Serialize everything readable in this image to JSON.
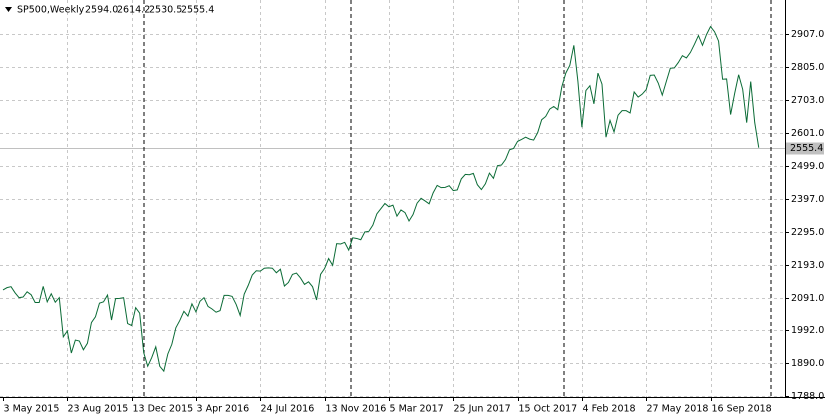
{
  "chart_data": {
    "type": "line",
    "title": "SP500,Weekly",
    "header_values": [
      "2594.0",
      "2614.2",
      "2530.5",
      "2555.4"
    ],
    "color": "#0b6b36",
    "grid": true,
    "categories": [
      "3 May 2015",
      null,
      null,
      null,
      null,
      null,
      null,
      null,
      null,
      null,
      null,
      null,
      null,
      null,
      null,
      null,
      "23 Aug 2015",
      null,
      null,
      null,
      null,
      null,
      null,
      null,
      null,
      null,
      null,
      null,
      null,
      null,
      null,
      null,
      "13 Dec 2015",
      null,
      null,
      null,
      null,
      null,
      null,
      null,
      null,
      null,
      null,
      null,
      null,
      null,
      null,
      null,
      "3 Apr 2016",
      null,
      null,
      null,
      null,
      null,
      null,
      null,
      null,
      null,
      null,
      null,
      null,
      null,
      null,
      null,
      "24 Jul 2016",
      null,
      null,
      null,
      null,
      null,
      null,
      null,
      null,
      null,
      null,
      null,
      null,
      null,
      null,
      null,
      "13 Nov 2016",
      null,
      null,
      null,
      null,
      null,
      null,
      null,
      null,
      null,
      null,
      null,
      null,
      null,
      null,
      null,
      "5 Mar 2017",
      null,
      null,
      null,
      null,
      null,
      null,
      null,
      null,
      null,
      null,
      null,
      null,
      null,
      null,
      null,
      "25 Jun 2017",
      null,
      null,
      null,
      null,
      null,
      null,
      null,
      null,
      null,
      null,
      null,
      null,
      null,
      null,
      null,
      "15 Oct 2017",
      null,
      null,
      null,
      null,
      null,
      null,
      null,
      null,
      null,
      null,
      null,
      null,
      null,
      null,
      null,
      "4 Feb 2018",
      null,
      null,
      null,
      null,
      null,
      null,
      null,
      null,
      null,
      null,
      null,
      null,
      null,
      null,
      null,
      "27 May 2018",
      null,
      null,
      null,
      null,
      null,
      null,
      null,
      null,
      null,
      null,
      null,
      null,
      null,
      null,
      null,
      "16 Sep 2018",
      null,
      null,
      null,
      null,
      null,
      null,
      null,
      null,
      null,
      null,
      null,
      null
    ],
    "values": [
      2116,
      2123,
      2126,
      2107,
      2092,
      2094,
      2110,
      2101,
      2077,
      2077,
      2127,
      2079,
      2104,
      2078,
      2092,
      1971,
      1989,
      1921,
      1961,
      1958,
      1931,
      1951,
      2015,
      2033,
      2075,
      2079,
      2100,
      2023,
      2089,
      2090,
      2092,
      2012,
      2006,
      2061,
      2044,
      1922,
      1880,
      1907,
      1940,
      1880,
      1865,
      1918,
      1948,
      1999,
      2022,
      2050,
      2035,
      2073,
      2048,
      2081,
      2092,
      2065,
      2057,
      2047,
      2052,
      2099,
      2099,
      2096,
      2071,
      2037,
      2103,
      2130,
      2162,
      2175,
      2174,
      2183,
      2184,
      2183,
      2169,
      2180,
      2128,
      2139,
      2164,
      2168,
      2153,
      2133,
      2141,
      2126,
      2085,
      2164,
      2182,
      2213,
      2192,
      2259,
      2258,
      2263,
      2239,
      2277,
      2275,
      2271,
      2295,
      2297,
      2316,
      2351,
      2367,
      2383,
      2373,
      2378,
      2344,
      2363,
      2355,
      2329,
      2349,
      2384,
      2399,
      2391,
      2382,
      2416,
      2439,
      2432,
      2433,
      2438,
      2423,
      2425,
      2459,
      2473,
      2472,
      2476,
      2441,
      2426,
      2444,
      2477,
      2461,
      2500,
      2502,
      2519,
      2549,
      2553,
      2575,
      2581,
      2588,
      2582,
      2579,
      2602,
      2642,
      2652,
      2675,
      2683,
      2673,
      2743,
      2786,
      2810,
      2872,
      2762,
      2619,
      2732,
      2747,
      2691,
      2786,
      2752,
      2588,
      2640,
      2604,
      2656,
      2670,
      2670,
      2663,
      2728,
      2712,
      2721,
      2735,
      2779,
      2780,
      2755,
      2718,
      2760,
      2801,
      2802,
      2819,
      2840,
      2833,
      2850,
      2875,
      2902,
      2872,
      2905,
      2930,
      2914,
      2885,
      2767,
      2768,
      2658,
      2723,
      2781,
      2736,
      2633,
      2760,
      2633,
      2555.4
    ],
    "ylim": [
      1785,
      3012
    ],
    "yticks": [
      {
        "value": 1788,
        "label": "1788.0"
      },
      {
        "value": 1890,
        "label": "1890.0"
      },
      {
        "value": 1992,
        "label": "1992.0"
      },
      {
        "value": 2091,
        "label": "2091.0"
      },
      {
        "value": 2193,
        "label": "2193.0"
      },
      {
        "value": 2295,
        "label": "2295.0"
      },
      {
        "value": 2397,
        "label": "2397.0"
      },
      {
        "value": 2499,
        "label": "2499.0"
      },
      {
        "value": 2601,
        "label": "2601.0"
      },
      {
        "value": 2703,
        "label": "2703.0"
      },
      {
        "value": 2805,
        "label": "2805.0"
      },
      {
        "value": 2907,
        "label": "2907.0"
      }
    ]
  }
}
